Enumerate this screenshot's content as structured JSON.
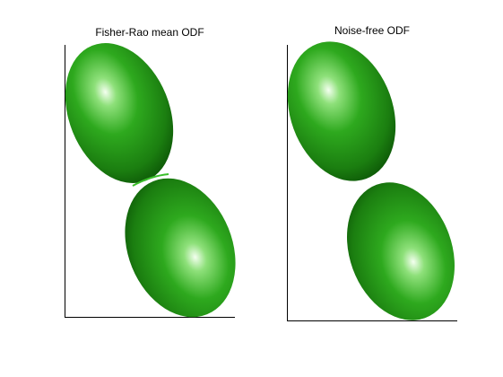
{
  "figure": {
    "panels": [
      {
        "title": "Fisher-Rao mean ODF"
      },
      {
        "title": "Noise-free ODF"
      }
    ],
    "colors": {
      "background": "#ffffff",
      "odf_fill_light": "#f4fff0",
      "odf_fill_mid": "#2ea91e",
      "odf_fill_dark": "#0a4f05",
      "axis": "#000000"
    }
  }
}
